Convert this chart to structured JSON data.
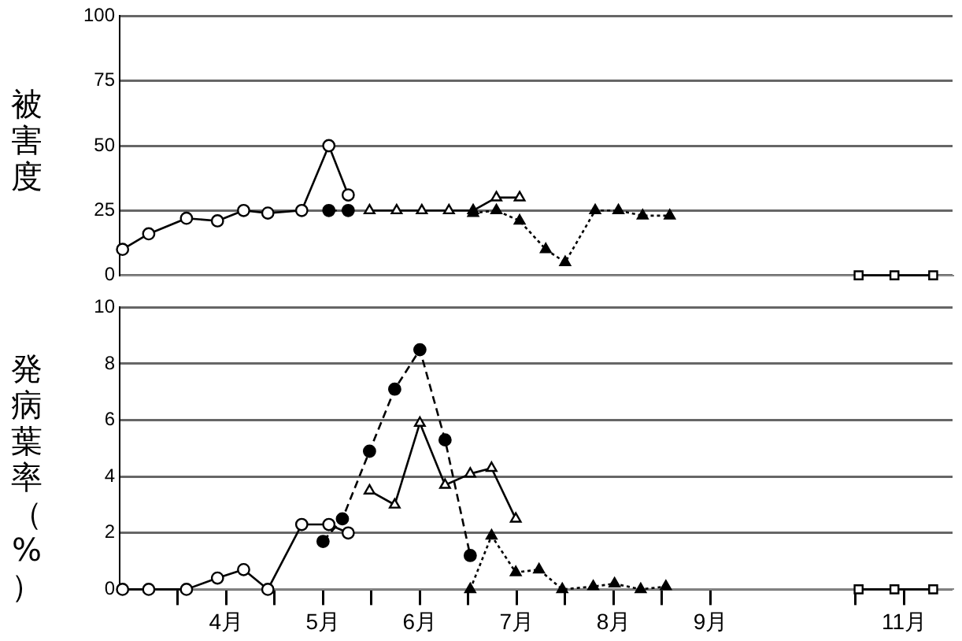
{
  "chart_data": [
    {
      "type": "line",
      "ylabel": "被害度",
      "xlim": [
        3.4,
        12
      ],
      "ylim": [
        0,
        100
      ],
      "yticks": [
        0,
        25,
        50,
        75,
        100
      ],
      "grid": "y",
      "tick_labels": "y",
      "series": [
        {
          "x": [
            3.43,
            3.7,
            4.09,
            4.41,
            4.68,
            4.93,
            5.28,
            5.56,
            5.76
          ],
          "values": [
            10,
            16,
            22,
            21,
            25,
            24,
            25,
            50,
            31
          ],
          "color": "#000000",
          "colors": [
            "#ffffff",
            "#ffffff",
            "#ffffff",
            "#ffffff",
            "#ffffff",
            "#ffffff",
            "#ffffff",
            "#ffffff",
            "#ffffff"
          ],
          "marker": "circle",
          "line_style": "solid"
        },
        {
          "x": [
            5.56,
            5.76
          ],
          "values": [
            25,
            25
          ],
          "color": "#000000",
          "colors": [
            "#000000",
            "#000000"
          ],
          "marker": "circle",
          "line_style": "dashed"
        },
        {
          "x": [
            5.98,
            6.26,
            6.52,
            6.8,
            7.05,
            7.29,
            7.53
          ],
          "values": [
            25,
            25,
            25,
            25,
            25,
            30,
            30
          ],
          "color": "#000000",
          "colors": [
            "#ffffff",
            "#ffffff",
            "#ffffff",
            "#ffffff",
            "#ffffff",
            "#ffffff",
            "#ffffff"
          ],
          "marker": "triangle",
          "line_style": "solid"
        },
        {
          "x": [
            7.05,
            7.29,
            7.53,
            7.8,
            8.0,
            8.31,
            8.55,
            8.8,
            9.08
          ],
          "values": [
            24,
            25,
            21,
            10,
            5,
            25,
            25,
            23,
            23
          ],
          "color": "#000000",
          "colors": [
            "#000000",
            "#000000",
            "#000000",
            "#000000",
            "#000000",
            "#000000",
            "#000000",
            "#000000",
            "#000000"
          ],
          "marker": "triangle",
          "line_style": "dotted"
        },
        {
          "x": [
            11.03,
            11.4,
            11.8
          ],
          "values": [
            0,
            0,
            0
          ],
          "color": "#000000",
          "colors": [
            "#ffffff",
            "#ffffff",
            "#ffffff"
          ],
          "marker": "square",
          "line_style": "solid"
        }
      ]
    },
    {
      "type": "line",
      "ylabel": "発病葉率（%）",
      "xlim": [
        3.4,
        12
      ],
      "ylim": [
        0,
        10
      ],
      "yticks": [
        0,
        2,
        4,
        6,
        8,
        10
      ],
      "grid": "y",
      "xticks": [
        {
          "value": 4,
          "label": null
        },
        {
          "value": 4.5,
          "label": "4月"
        },
        {
          "value": 5,
          "label": null
        },
        {
          "value": 5.5,
          "label": "5月"
        },
        {
          "value": 6,
          "label": null
        },
        {
          "value": 6.5,
          "label": "6月"
        },
        {
          "value": 7,
          "label": null
        },
        {
          "value": 7.5,
          "label": "7月"
        },
        {
          "value": 8,
          "label": null
        },
        {
          "value": 8.5,
          "label": "8月"
        },
        {
          "value": 9,
          "label": null
        },
        {
          "value": 9.5,
          "label": "9月"
        },
        {
          "value": 11,
          "label": null
        },
        {
          "value": 11.5,
          "label": "11月"
        }
      ],
      "series": [
        {
          "x": [
            3.43,
            3.7,
            4.09,
            4.41,
            4.68,
            4.93,
            5.28,
            5.56,
            5.76
          ],
          "values": [
            0,
            0,
            0,
            0.4,
            0.7,
            0,
            2.3,
            2.3,
            2.0
          ],
          "color": "#000000",
          "colors": [
            "#ffffff",
            "#ffffff",
            "#ffffff",
            "#ffffff",
            "#ffffff",
            "#ffffff",
            "#ffffff",
            "#ffffff",
            "#ffffff"
          ],
          "marker": "circle",
          "line_style": "solid"
        },
        {
          "x": [
            5.5,
            5.7,
            5.98,
            6.24,
            6.5,
            6.76,
            7.02
          ],
          "values": [
            1.7,
            2.5,
            4.9,
            7.1,
            8.5,
            5.3,
            1.2
          ],
          "color": "#000000",
          "colors": [
            "#000000",
            "#000000",
            "#000000",
            "#000000",
            "#000000",
            "#000000",
            "#000000"
          ],
          "marker": "circle",
          "line_style": "dashed"
        },
        {
          "x": [
            5.98,
            6.24,
            6.5,
            6.76,
            7.02,
            7.24,
            7.49
          ],
          "values": [
            3.5,
            3.0,
            5.9,
            3.7,
            4.1,
            4.3,
            2.5
          ],
          "color": "#000000",
          "colors": [
            "#ffffff",
            "#ffffff",
            "#ffffff",
            "#ffffff",
            "#ffffff",
            "#ffffff",
            "#ffffff"
          ],
          "marker": "triangle",
          "line_style": "solid"
        },
        {
          "x": [
            7.02,
            7.24,
            7.49,
            7.73,
            7.97,
            8.29,
            8.51,
            8.78,
            9.04
          ],
          "values": [
            0,
            1.9,
            0.6,
            0.7,
            0,
            0.1,
            0.2,
            0,
            0.1
          ],
          "color": "#000000",
          "colors": [
            "#000000",
            "#000000",
            "#000000",
            "#000000",
            "#000000",
            "#000000",
            "#000000",
            "#000000",
            "#000000"
          ],
          "marker": "triangle",
          "line_style": "dotted"
        },
        {
          "x": [
            11.03,
            11.4,
            11.8
          ],
          "values": [
            0,
            0,
            0
          ],
          "color": "#000000",
          "colors": [
            "#ffffff",
            "#ffffff",
            "#ffffff"
          ],
          "marker": "square",
          "line_style": "solid"
        }
      ]
    }
  ]
}
